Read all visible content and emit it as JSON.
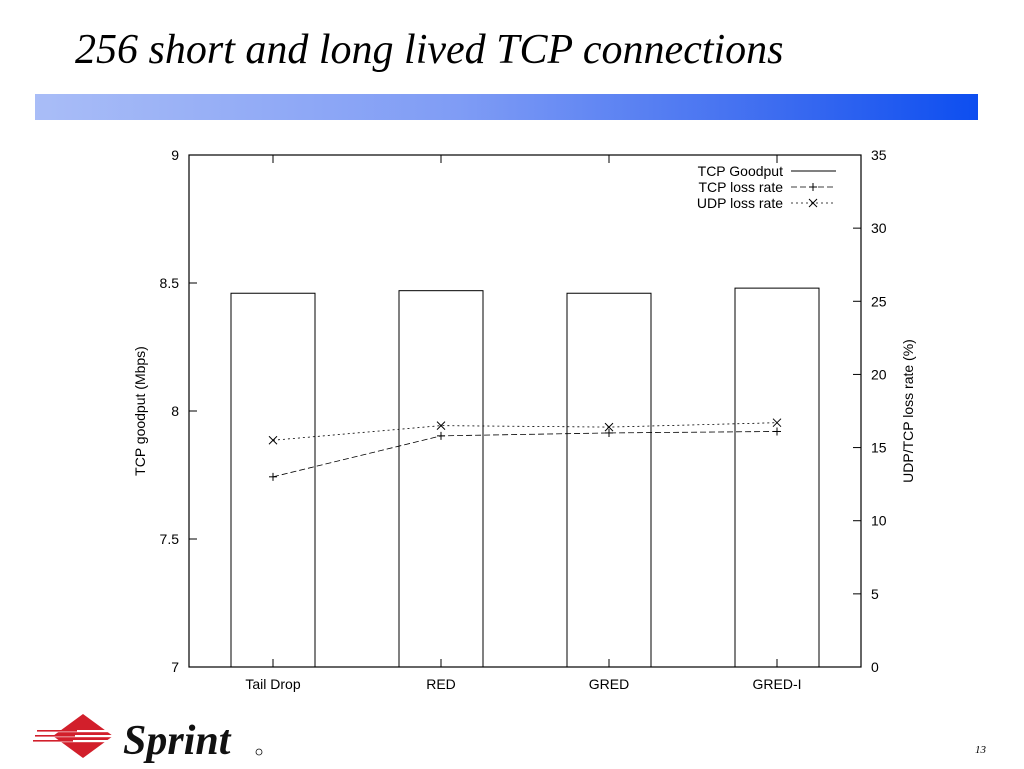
{
  "slide": {
    "title": "256 short and long lived TCP connections",
    "page_number": "13",
    "logo_text": "Sprint"
  },
  "colors": {
    "title_bar_start": "#a9bdf7",
    "title_bar_end": "#0d4ef0",
    "logo_red": "#d21f2b"
  },
  "chart_data": {
    "type": "bar",
    "categories": [
      "Tail Drop",
      "RED",
      "GRED",
      "GRED-I"
    ],
    "ylabel": "TCP goodput (Mbps)",
    "y2label": "UDP/TCP loss rate (%)",
    "ylim": [
      7,
      9
    ],
    "y2lim": [
      0,
      35
    ],
    "yticks": [
      "7",
      "7.5",
      "8",
      "8.5",
      "9"
    ],
    "y2ticks": [
      "0",
      "5",
      "10",
      "15",
      "20",
      "25",
      "30",
      "35"
    ],
    "grid": false,
    "legend_position": "top-right",
    "series": [
      {
        "name": "TCP Goodput",
        "kind": "bar",
        "axis": "left",
        "values": [
          8.46,
          8.47,
          8.46,
          8.48
        ]
      },
      {
        "name": "TCP loss rate",
        "kind": "line",
        "axis": "right",
        "marker": "plus",
        "dash": "dashed",
        "values": [
          13.0,
          15.8,
          16.0,
          16.1
        ]
      },
      {
        "name": "UDP loss rate",
        "kind": "line",
        "axis": "right",
        "marker": "cross",
        "dash": "dotted",
        "values": [
          15.5,
          16.5,
          16.4,
          16.7
        ]
      }
    ]
  }
}
